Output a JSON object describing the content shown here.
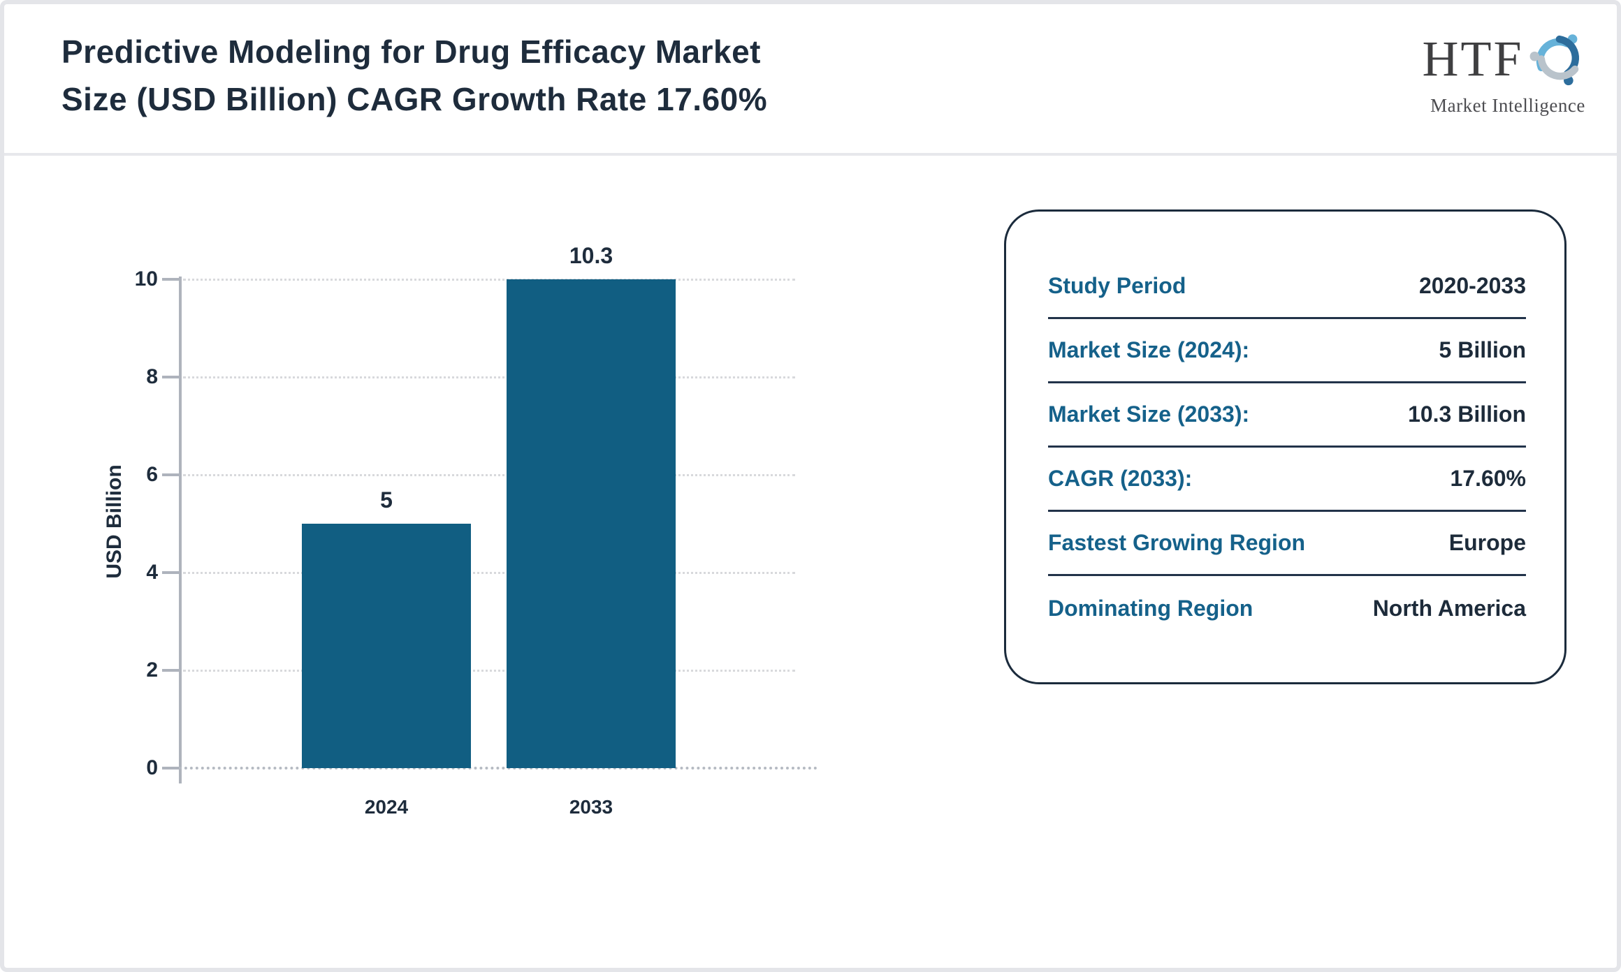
{
  "header": {
    "title_lines": [
      "Predictive Modeling for Drug Efficacy Market",
      "Size (USD Billion) CAGR Growth Rate 17.60%"
    ],
    "logo": {
      "name": "HTF",
      "subtitle": "Market Intelligence"
    }
  },
  "chart_data": {
    "type": "bar",
    "title": "Predictive Modeling for Drug Efficacy Market Size (USD Billion)",
    "categories": [
      "2024",
      "2033"
    ],
    "values": [
      5,
      10.3
    ],
    "bar_labels": [
      "5",
      "10.3"
    ],
    "xlabel": "",
    "ylabel": "USD Billion",
    "ylim": [
      0,
      10
    ],
    "yticks": [
      0,
      2,
      4,
      6,
      8,
      10
    ],
    "grid": "dotted-horizontal",
    "legend": "none",
    "bar_color": "#115e82"
  },
  "panel": {
    "rows": [
      {
        "label": "Study Period",
        "value": "2020-2033"
      },
      {
        "label": "Market Size (2024):",
        "value": "5 Billion"
      },
      {
        "label": "Market Size (2033):",
        "value": "10.3 Billion"
      },
      {
        "label": "CAGR (2033):",
        "value": "17.60%"
      },
      {
        "label": "Fastest Growing Region",
        "value": "Europe"
      },
      {
        "label": "Dominating Region",
        "value": "North America"
      }
    ]
  },
  "colors": {
    "bar": "#115e82",
    "panel_label_teal": "#15618a",
    "text_navy": "#1e2c3c",
    "axis_gray": "#aeb3bc",
    "grid_gray": "#d8d9dc",
    "page_border_gray": "#e4e5e9",
    "panel_border_navy": "#1b2b3c",
    "logo_light_blue": "#66b2d9",
    "logo_dark_blue": "#2d6d9c",
    "logo_gray": "#b9c3cb"
  }
}
